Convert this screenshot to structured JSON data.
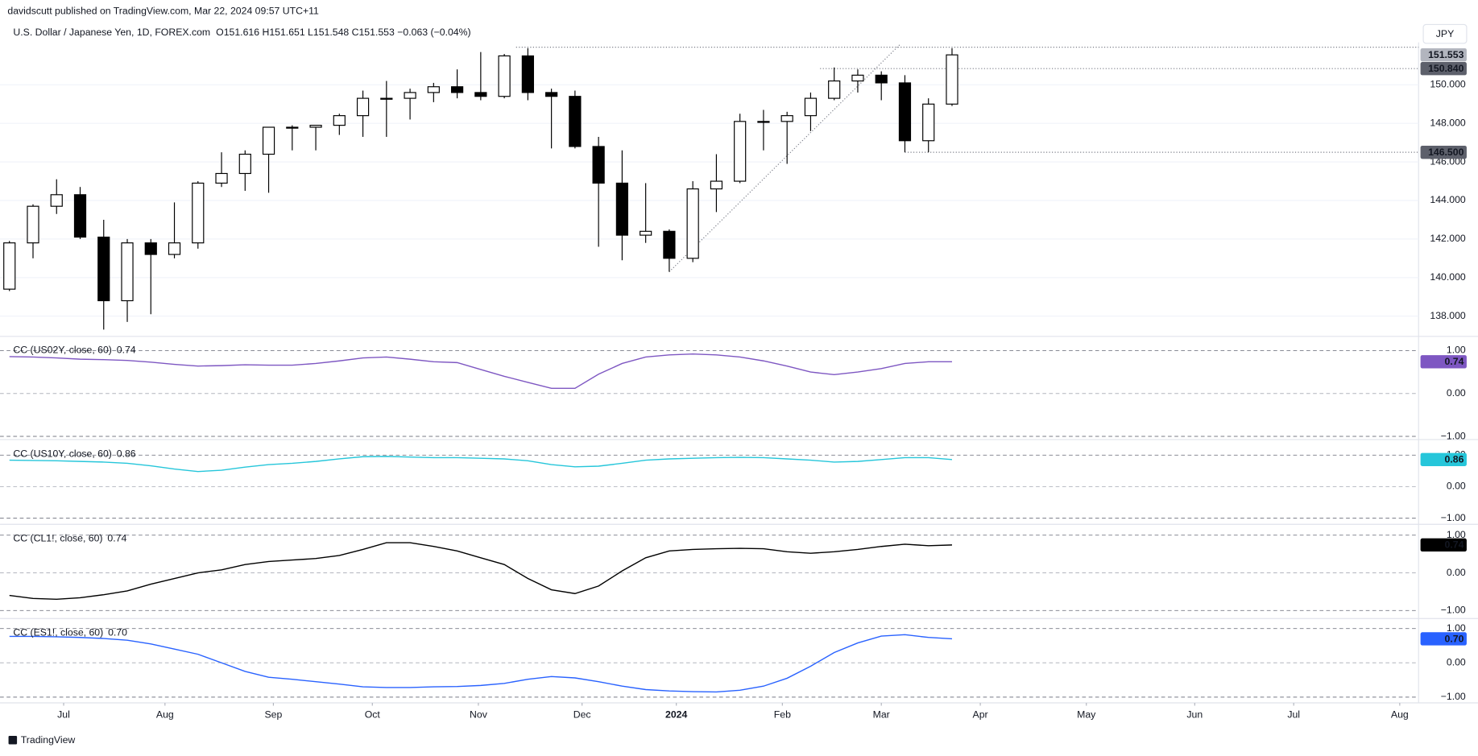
{
  "header": {
    "published": "davidscutt published on TradingView.com, Mar 22, 2024 09:57 UTC+11",
    "currency": "JPY",
    "footer": "TradingView"
  },
  "chart_data": [
    {
      "type": "candlestick",
      "title": "U.S. Dollar / Japanese Yen, 1D, FOREX.com",
      "subtitle": "O151.616 H151.651 L151.548 C151.553 −0.063 (−0.04%)",
      "x": [
        0,
        1,
        2,
        3,
        4,
        5,
        6,
        7,
        8,
        9,
        10,
        11,
        12,
        13,
        14,
        15,
        16,
        17,
        18,
        19,
        20,
        21,
        22,
        23,
        24,
        25,
        26,
        27,
        28,
        29,
        30,
        31,
        32,
        33,
        34,
        35,
        36,
        37,
        38,
        39,
        40
      ],
      "open": [
        139.4,
        141.8,
        143.7,
        144.3,
        142.1,
        138.8,
        141.8,
        141.2,
        141.8,
        144.9,
        145.4,
        146.4,
        147.8,
        147.8,
        147.9,
        148.4,
        149.3,
        149.3,
        149.6,
        149.9,
        149.6,
        149.4,
        151.5,
        149.6,
        149.4,
        146.8,
        144.9,
        142.2,
        142.4,
        141.0,
        144.6,
        145.0,
        148.1,
        148.1,
        148.4,
        149.3,
        150.2,
        150.5,
        150.1,
        147.1,
        149.0
      ],
      "high": [
        141.9,
        143.8,
        145.1,
        144.7,
        143.0,
        142.0,
        142.0,
        143.9,
        145.0,
        146.5,
        146.6,
        147.8,
        147.9,
        147.9,
        148.5,
        149.7,
        150.2,
        149.8,
        150.1,
        150.8,
        151.7,
        151.6,
        151.9,
        149.8,
        149.7,
        147.3,
        146.6,
        144.9,
        142.5,
        145.0,
        146.4,
        148.5,
        148.7,
        148.6,
        149.6,
        150.9,
        150.8,
        150.7,
        150.5,
        149.3,
        151.9
      ],
      "low": [
        139.3,
        141.0,
        143.3,
        142.0,
        137.3,
        137.7,
        138.1,
        141.0,
        141.5,
        144.7,
        144.5,
        144.4,
        146.6,
        146.6,
        147.4,
        147.3,
        147.3,
        148.2,
        149.1,
        149.3,
        149.2,
        149.3,
        149.2,
        146.7,
        146.7,
        141.6,
        140.9,
        141.8,
        140.3,
        140.8,
        143.4,
        144.9,
        146.6,
        145.9,
        147.6,
        149.2,
        149.6,
        149.2,
        146.5,
        146.5,
        148.9
      ],
      "close": [
        141.8,
        143.7,
        144.3,
        142.1,
        138.8,
        141.8,
        141.2,
        141.8,
        144.9,
        145.4,
        146.4,
        147.8,
        147.8,
        147.9,
        148.4,
        149.3,
        149.3,
        149.6,
        149.9,
        149.6,
        149.4,
        151.5,
        149.6,
        149.4,
        146.8,
        144.9,
        142.2,
        142.4,
        141.0,
        144.6,
        145.0,
        148.1,
        148.1,
        148.4,
        149.3,
        150.2,
        150.5,
        150.1,
        147.1,
        149.0,
        151.553
      ],
      "up_color": "#ffffff",
      "down_color": "#000000",
      "border_color": "#000000",
      "xlim": [
        -0.08,
        59.6
      ],
      "xticks": [
        {
          "value": 2.3,
          "label": "Jul"
        },
        {
          "value": 6.6,
          "label": "Aug"
        },
        {
          "value": 11.2,
          "label": "Sep"
        },
        {
          "value": 15.4,
          "label": "Oct"
        },
        {
          "value": 19.9,
          "label": "Nov"
        },
        {
          "value": 24.3,
          "label": "Dec"
        },
        {
          "value": 28.3,
          "label": "2024"
        },
        {
          "value": 32.8,
          "label": "Feb"
        },
        {
          "value": 37.0,
          "label": "Mar"
        },
        {
          "value": 41.2,
          "label": "Apr"
        },
        {
          "value": 45.7,
          "label": "May"
        },
        {
          "value": 50.3,
          "label": "Jun"
        },
        {
          "value": 54.5,
          "label": "Jul"
        },
        {
          "value": 59.0,
          "label": "Aug"
        }
      ],
      "ylim": [
        137.0,
        152.2
      ],
      "yticks": [
        {
          "value": 138,
          "label": "138.000"
        },
        {
          "value": 140,
          "label": "140.000"
        },
        {
          "value": 142,
          "label": "142.000"
        },
        {
          "value": 144,
          "label": "144.000"
        },
        {
          "value": 146,
          "label": "146.000"
        },
        {
          "value": 148,
          "label": "148.000"
        },
        {
          "value": 150,
          "label": "150.000"
        }
      ],
      "grid": true,
      "last_price": {
        "value": 151.553,
        "label": "151.553"
      },
      "levels": [
        {
          "value": 151.95,
          "from": 21.5
        },
        {
          "value": 150.84,
          "label": "150.840",
          "from": 34.4
        },
        {
          "value": 146.5,
          "label": "146.500",
          "from": 38.0
        }
      ],
      "trendline": {
        "x": [
          28.0,
          37.8
        ],
        "y": [
          140.3,
          152.1
        ]
      }
    },
    {
      "type": "line",
      "title": "CC (US02Y, close, 60)",
      "value_label": "0.74",
      "color": "#7e57c2",
      "values": [
        0.86,
        0.85,
        0.83,
        0.8,
        0.79,
        0.77,
        0.73,
        0.68,
        0.64,
        0.65,
        0.67,
        0.66,
        0.66,
        0.7,
        0.76,
        0.83,
        0.85,
        0.8,
        0.74,
        0.72,
        0.56,
        0.4,
        0.26,
        0.12,
        0.12,
        0.45,
        0.7,
        0.85,
        0.9,
        0.92,
        0.9,
        0.85,
        0.76,
        0.64,
        0.5,
        0.44,
        0.5,
        0.58,
        0.7,
        0.74,
        0.74
      ],
      "ylim": [
        -1.04,
        1.31
      ],
      "yticks": [
        {
          "value": 1,
          "label": "1.00"
        },
        {
          "value": 0,
          "label": "0.00"
        },
        {
          "value": -1,
          "label": "−1.00"
        }
      ]
    },
    {
      "type": "line",
      "title": "CC (US10Y, close, 60)",
      "value_label": "0.86",
      "color": "#26c6da",
      "values": [
        0.84,
        0.83,
        0.82,
        0.8,
        0.78,
        0.74,
        0.66,
        0.56,
        0.48,
        0.52,
        0.62,
        0.7,
        0.74,
        0.8,
        0.88,
        0.95,
        0.96,
        0.94,
        0.92,
        0.92,
        0.9,
        0.88,
        0.82,
        0.7,
        0.63,
        0.65,
        0.74,
        0.84,
        0.88,
        0.9,
        0.92,
        0.93,
        0.92,
        0.88,
        0.84,
        0.78,
        0.8,
        0.86,
        0.92,
        0.92,
        0.86
      ],
      "ylim": [
        -1.15,
        1.45
      ],
      "yticks": [
        {
          "value": 1,
          "label": "1.00"
        },
        {
          "value": 0,
          "label": "0.00"
        },
        {
          "value": -1,
          "label": "−1.00"
        }
      ]
    },
    {
      "type": "line",
      "title": "CC (CL1!, close, 60)",
      "value_label": "0.74",
      "color": "#000000",
      "values": [
        -0.6,
        -0.68,
        -0.7,
        -0.66,
        -0.58,
        -0.48,
        -0.3,
        -0.15,
        0.0,
        0.08,
        0.22,
        0.3,
        0.34,
        0.38,
        0.46,
        0.62,
        0.8,
        0.8,
        0.7,
        0.58,
        0.4,
        0.22,
        -0.15,
        -0.45,
        -0.55,
        -0.35,
        0.05,
        0.4,
        0.58,
        0.62,
        0.64,
        0.65,
        0.64,
        0.56,
        0.52,
        0.56,
        0.62,
        0.7,
        0.76,
        0.72,
        0.74
      ],
      "ylim": [
        -1.175,
        1.25
      ],
      "yticks": [
        {
          "value": 1,
          "label": "1.00"
        },
        {
          "value": 0,
          "label": "0.00"
        },
        {
          "value": -1,
          "label": "−1.00"
        }
      ]
    },
    {
      "type": "line",
      "title": "CC (ES1!, close, 60)",
      "value_label": "0.70",
      "color": "#2962ff",
      "values": [
        0.77,
        0.77,
        0.76,
        0.74,
        0.71,
        0.66,
        0.55,
        0.4,
        0.25,
        0.0,
        -0.25,
        -0.42,
        -0.48,
        -0.55,
        -0.62,
        -0.7,
        -0.72,
        -0.72,
        -0.7,
        -0.69,
        -0.66,
        -0.6,
        -0.48,
        -0.4,
        -0.44,
        -0.55,
        -0.68,
        -0.78,
        -0.82,
        -0.84,
        -0.85,
        -0.8,
        -0.68,
        -0.45,
        -0.1,
        0.3,
        0.58,
        0.78,
        0.82,
        0.74,
        0.7
      ],
      "ylim": [
        -1.14,
        1.25
      ],
      "yticks": [
        {
          "value": 1,
          "label": "1.00"
        },
        {
          "value": 0,
          "label": "0.00"
        },
        {
          "value": -1,
          "label": "−1.00"
        }
      ]
    }
  ]
}
